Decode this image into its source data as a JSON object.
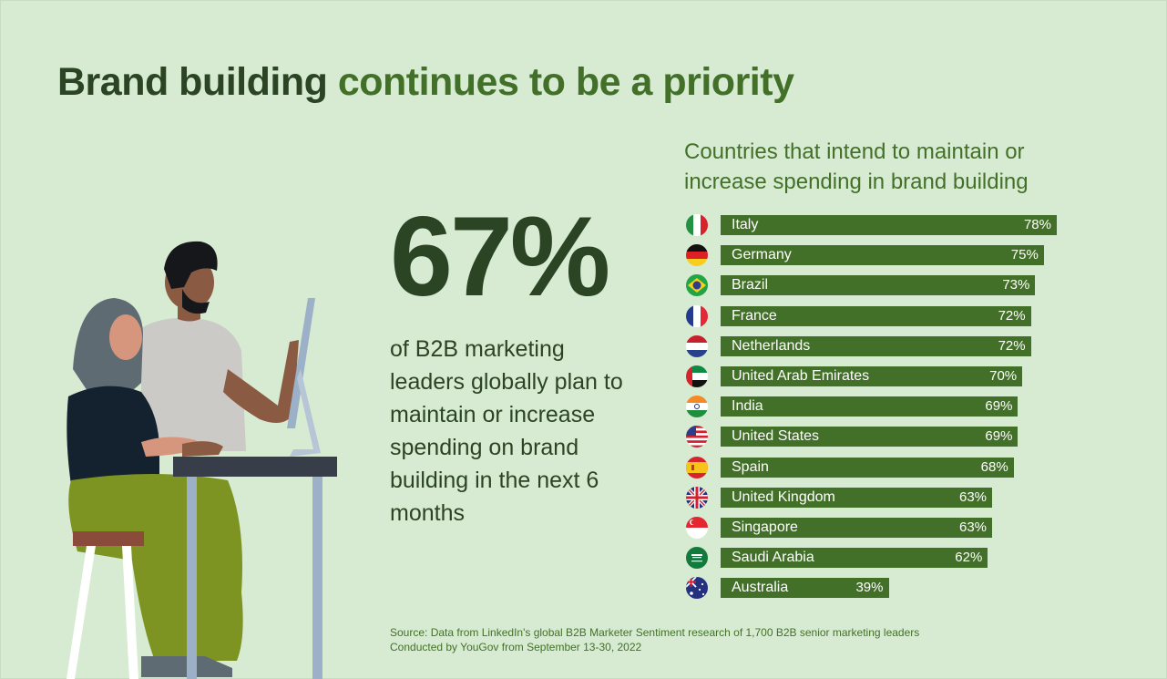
{
  "title": {
    "part1": "Brand building",
    "part2": "continues to be a priority"
  },
  "headline_stat": "67%",
  "description": "of B2B marketing leaders globally plan to maintain or increase spending on brand building in the next 6 months",
  "source_lines": [
    "Source: Data from LinkedIn's global B2B Marketer Sentiment research of 1,700 B2B senior marketing leaders",
    "Conducted by YouGov from September 13-30, 2022"
  ],
  "chart_data": {
    "type": "bar",
    "orientation": "horizontal",
    "title": "Countries that intend to maintain or increase  spending in brand building",
    "categories": [
      "Italy",
      "Germany",
      "Brazil",
      "France",
      "Netherlands",
      "United Arab Emirates",
      "India",
      "United States",
      "Spain",
      "United Kingdom",
      "Singapore",
      "Saudi Arabia",
      "Australia"
    ],
    "values": [
      78,
      75,
      73,
      72,
      72,
      70,
      69,
      69,
      68,
      63,
      63,
      62,
      39
    ],
    "value_labels": [
      "78%",
      "75%",
      "73%",
      "72%",
      "72%",
      "70%",
      "69%",
      "69%",
      "68%",
      "63%",
      "63%",
      "62%",
      "39%"
    ],
    "flag_icons": [
      "italy-flag-icon",
      "germany-flag-icon",
      "brazil-flag-icon",
      "france-flag-icon",
      "netherlands-flag-icon",
      "uae-flag-icon",
      "india-flag-icon",
      "usa-flag-icon",
      "spain-flag-icon",
      "uk-flag-icon",
      "singapore-flag-icon",
      "saudi-arabia-flag-icon",
      "australia-flag-icon"
    ],
    "bar_color": "#437029"
  },
  "colors": {
    "background": "#d7ebd2",
    "dark_green": "#2b4423",
    "accent_green": "#437029"
  }
}
